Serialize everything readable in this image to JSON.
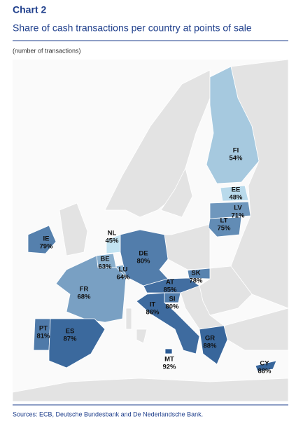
{
  "chart_data": {
    "type": "choropleth",
    "title": "Chart 2",
    "subtitle": "Share of cash transactions per country at points of sale",
    "note": "(number of transactions)",
    "source": "Sources: ECB, Deutsche Bundesbank and De Nederlandsche Bank.",
    "categories": [
      "FI",
      "EE",
      "LV",
      "LT",
      "IE",
      "NL",
      "BE",
      "LU",
      "DE",
      "FR",
      "AT",
      "SK",
      "SI",
      "IT",
      "PT",
      "ES",
      "GR",
      "MT",
      "CY"
    ],
    "values": [
      54,
      48,
      71,
      75,
      79,
      45,
      63,
      64,
      80,
      68,
      85,
      78,
      80,
      86,
      81,
      87,
      88,
      92,
      88
    ],
    "value_labels": [
      "54%",
      "48%",
      "71%",
      "75%",
      "79%",
      "45%",
      "63%",
      "64%",
      "80%",
      "68%",
      "85%",
      "78%",
      "80%",
      "86%",
      "81%",
      "87%",
      "88%",
      "92%",
      "88%"
    ],
    "color_range": [
      "#c3e3f1",
      "#2b5a93"
    ]
  }
}
